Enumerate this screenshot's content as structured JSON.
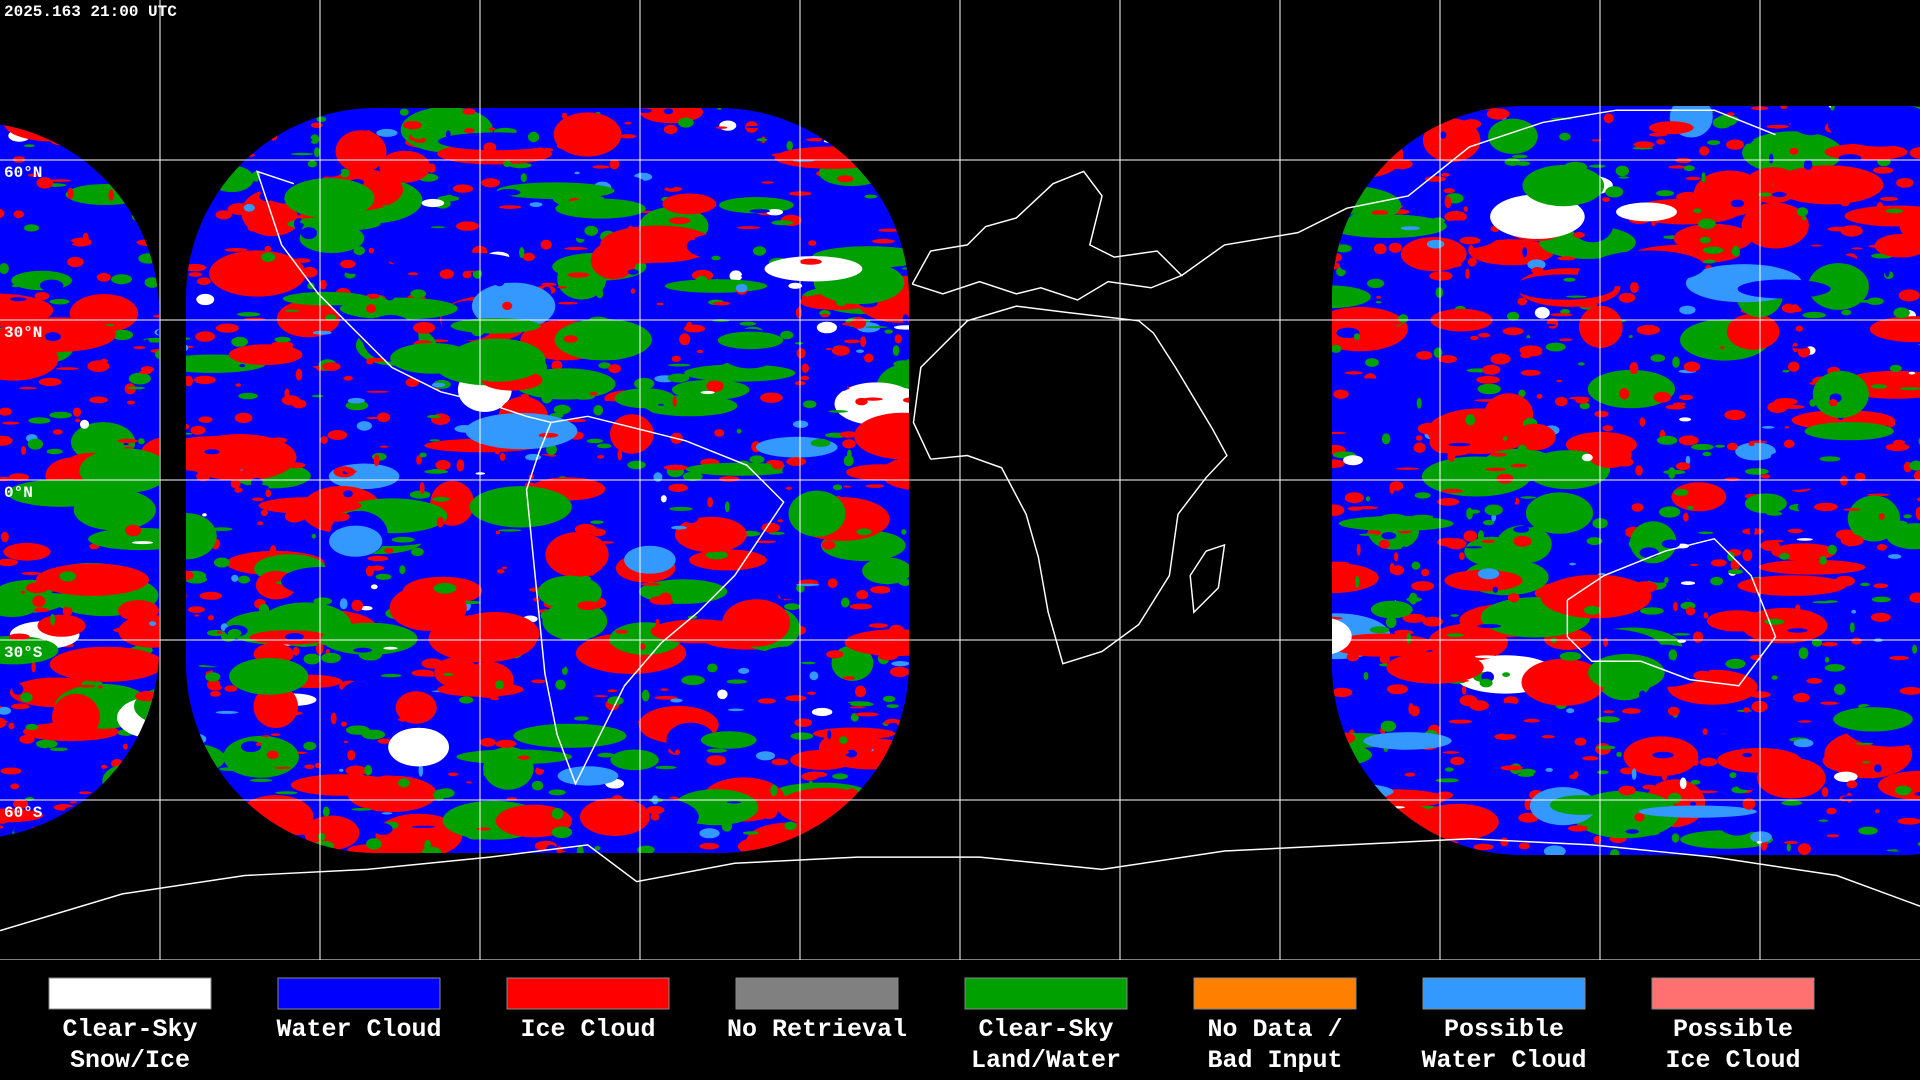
{
  "header": {
    "timestamp": "2025.163 21:00 UTC"
  },
  "map": {
    "latitude_labels": [
      "60°N",
      "30°N",
      "0°N",
      "30°S",
      "60°S"
    ]
  },
  "legend": {
    "items": [
      {
        "lines": [
          "Clear-Sky",
          "Snow/Ice"
        ],
        "color": "#ffffff"
      },
      {
        "lines": [
          "Water Cloud"
        ],
        "color": "#0000ff"
      },
      {
        "lines": [
          "Ice Cloud"
        ],
        "color": "#ff0000"
      },
      {
        "lines": [
          "No Retrieval"
        ],
        "color": "#808080"
      },
      {
        "lines": [
          "Clear-Sky",
          "Land/Water"
        ],
        "color": "#00a000"
      },
      {
        "lines": [
          "No Data /",
          "Bad Input"
        ],
        "color": "#ff8000"
      },
      {
        "lines": [
          "Possible",
          "Water Cloud"
        ],
        "color": "#3399ff"
      },
      {
        "lines": [
          "Possible",
          "Ice Cloud"
        ],
        "color": "#ff7070"
      }
    ]
  }
}
